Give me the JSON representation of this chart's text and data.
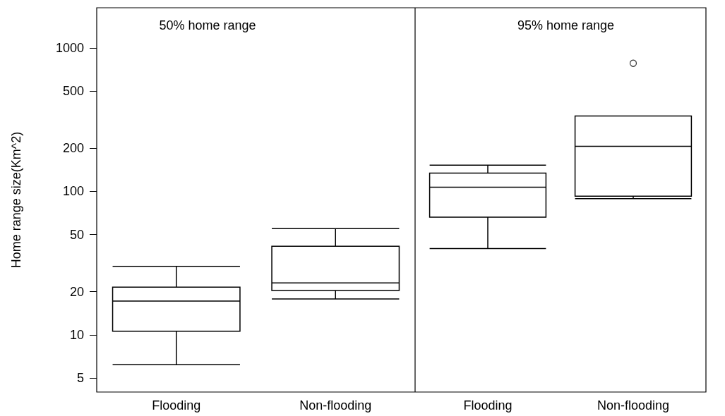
{
  "chart_data": [
    {
      "type": "box",
      "title": "50% home range",
      "ylabel": "Home range size(Km^2)",
      "categories": [
        "Flooding",
        "Non-flooding"
      ],
      "log": true,
      "ylim": [
        4,
        1900
      ],
      "yticks": [
        5,
        10,
        20,
        50,
        100,
        200,
        500,
        1000
      ],
      "grid": false,
      "boxes": [
        {
          "low": 6.2,
          "q1": 10.6,
          "median": 17.2,
          "q3": 21.5,
          "high": 30
        },
        {
          "low": 17.8,
          "q1": 20.4,
          "median": 23,
          "q3": 41.5,
          "high": 55
        }
      ]
    },
    {
      "type": "box",
      "title": "95% home range",
      "categories": [
        "Flooding",
        "Non-flooding"
      ],
      "log": true,
      "ylim": [
        4,
        1900
      ],
      "yticks": [
        5,
        10,
        20,
        50,
        100,
        200,
        500,
        1000
      ],
      "tick_labels": "x",
      "grid": false,
      "boxes": [
        {
          "low": 40,
          "q1": 66,
          "median": 107,
          "q3": 134,
          "high": 152
        },
        {
          "low": 89,
          "q1": 92.5,
          "median": 206,
          "q3": 335,
          "high": 335,
          "outliers": [
            780
          ]
        }
      ]
    }
  ]
}
